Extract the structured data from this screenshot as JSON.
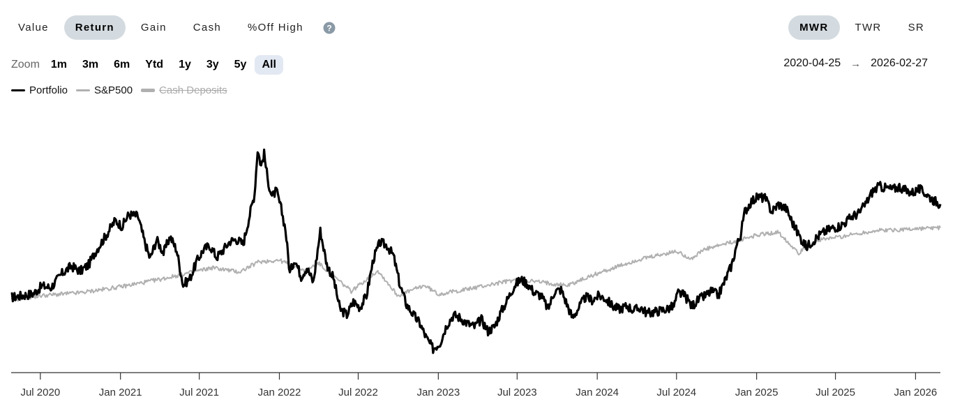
{
  "metric_tabs": [
    "Value",
    "Return",
    "Gain",
    "Cash",
    "%Off High"
  ],
  "active_metric": "Return",
  "return_tabs": [
    "MWR",
    "TWR",
    "SR"
  ],
  "active_return": "MWR",
  "zoom": {
    "label": "Zoom",
    "options": [
      "1m",
      "3m",
      "6m",
      "Ytd",
      "1y",
      "3y",
      "5y",
      "All"
    ],
    "active": "All"
  },
  "date_range": {
    "start": "2020-04-25",
    "end": "2026-02-27"
  },
  "legend": [
    {
      "name": "Portfolio",
      "color": "#000000",
      "enabled": true
    },
    {
      "name": "S&P500",
      "color": "#b0b0b0",
      "enabled": true
    },
    {
      "name": "Cash Deposits",
      "color": "#b0b0b0",
      "enabled": false
    }
  ],
  "chart_data": {
    "type": "line",
    "x_start": "2020-04-25",
    "x_end": "2026-02-27",
    "tick_labels": [
      "Jul 2020",
      "Jan 2021",
      "Jul 2021",
      "Jan 2022",
      "Jul 2022",
      "Jan 2023",
      "Jul 2023",
      "Jan 2024",
      "Jul 2024",
      "Jan 2025",
      "Jul 2025",
      "Jan 2026"
    ],
    "y_axis_labels_shown": false,
    "grid": false,
    "series": [
      {
        "name": "Portfolio",
        "color": "#000000",
        "points": [
          [
            "2020-04-25",
            0.9
          ],
          [
            "2020-05-20",
            1.5
          ],
          [
            "2020-06-15",
            2.2
          ],
          [
            "2020-07-05",
            4.8
          ],
          [
            "2020-07-25",
            4.2
          ],
          [
            "2020-08-20",
            9.0
          ],
          [
            "2020-09-10",
            11.5
          ],
          [
            "2020-10-01",
            9.8
          ],
          [
            "2020-10-20",
            12.0
          ],
          [
            "2020-11-05",
            16.5
          ],
          [
            "2020-11-25",
            21.0
          ],
          [
            "2020-12-20",
            27.0
          ],
          [
            "2021-01-05",
            25.0
          ],
          [
            "2021-01-20",
            29.0
          ],
          [
            "2021-02-10",
            28.5
          ],
          [
            "2021-02-25",
            20.0
          ],
          [
            "2021-03-10",
            14.0
          ],
          [
            "2021-03-25",
            20.5
          ],
          [
            "2021-04-10",
            16.0
          ],
          [
            "2021-04-25",
            21.5
          ],
          [
            "2021-05-10",
            17.0
          ],
          [
            "2021-05-25",
            5.0
          ],
          [
            "2021-06-10",
            7.5
          ],
          [
            "2021-06-25",
            13.0
          ],
          [
            "2021-07-10",
            17.0
          ],
          [
            "2021-07-25",
            18.5
          ],
          [
            "2021-08-10",
            14.5
          ],
          [
            "2021-08-25",
            17.0
          ],
          [
            "2021-09-10",
            20.0
          ],
          [
            "2021-09-25",
            20.5
          ],
          [
            "2021-10-10",
            19.0
          ],
          [
            "2021-10-25",
            29.0
          ],
          [
            "2021-11-05",
            36.0
          ],
          [
            "2021-11-12",
            51.0
          ],
          [
            "2021-11-20",
            45.5
          ],
          [
            "2021-11-27",
            49.5
          ],
          [
            "2021-12-05",
            41.0
          ],
          [
            "2021-12-15",
            35.0
          ],
          [
            "2021-12-25",
            37.0
          ],
          [
            "2022-01-05",
            31.0
          ],
          [
            "2022-01-15",
            24.0
          ],
          [
            "2022-01-25",
            9.0
          ],
          [
            "2022-02-05",
            14.0
          ],
          [
            "2022-02-20",
            8.0
          ],
          [
            "2022-03-05",
            11.0
          ],
          [
            "2022-03-20",
            6.0
          ],
          [
            "2022-04-05",
            23.5
          ],
          [
            "2022-04-20",
            12.0
          ],
          [
            "2022-05-05",
            7.5
          ],
          [
            "2022-05-20",
            -3.0
          ],
          [
            "2022-06-05",
            -5.0
          ],
          [
            "2022-06-20",
            -0.5
          ],
          [
            "2022-07-05",
            -2.5
          ],
          [
            "2022-07-20",
            1.5
          ],
          [
            "2022-08-05",
            14.0
          ],
          [
            "2022-08-20",
            19.5
          ],
          [
            "2022-09-05",
            18.5
          ],
          [
            "2022-09-20",
            15.0
          ],
          [
            "2022-10-05",
            5.0
          ],
          [
            "2022-10-20",
            -1.5
          ],
          [
            "2022-11-05",
            -5.0
          ],
          [
            "2022-11-20",
            -8.0
          ],
          [
            "2022-12-05",
            -13.0
          ],
          [
            "2022-12-20",
            -16.5
          ],
          [
            "2023-01-05",
            -14.5
          ],
          [
            "2023-01-20",
            -8.5
          ],
          [
            "2023-02-05",
            -5.0
          ],
          [
            "2023-02-20",
            -6.0
          ],
          [
            "2023-03-10",
            -8.0
          ],
          [
            "2023-03-25",
            -9.0
          ],
          [
            "2023-04-10",
            -6.5
          ],
          [
            "2023-04-25",
            -10.5
          ],
          [
            "2023-05-10",
            -9.0
          ],
          [
            "2023-05-25",
            -4.0
          ],
          [
            "2023-06-10",
            0.5
          ],
          [
            "2023-06-25",
            5.0
          ],
          [
            "2023-07-10",
            7.0
          ],
          [
            "2023-07-25",
            5.5
          ],
          [
            "2023-08-10",
            2.5
          ],
          [
            "2023-08-25",
            1.5
          ],
          [
            "2023-09-10",
            -3.0
          ],
          [
            "2023-09-25",
            3.0
          ],
          [
            "2023-10-10",
            3.5
          ],
          [
            "2023-10-25",
            -2.0
          ],
          [
            "2023-11-05",
            -6.0
          ],
          [
            "2023-11-20",
            -2.5
          ],
          [
            "2023-12-05",
            1.0
          ],
          [
            "2023-12-20",
            0.0
          ],
          [
            "2024-01-05",
            1.5
          ],
          [
            "2024-01-20",
            0.5
          ],
          [
            "2024-02-05",
            -2.0
          ],
          [
            "2024-02-20",
            -3.0
          ],
          [
            "2024-03-10",
            -2.0
          ],
          [
            "2024-03-25",
            -3.5
          ],
          [
            "2024-04-10",
            -2.5
          ],
          [
            "2024-04-25",
            -4.5
          ],
          [
            "2024-05-10",
            -4.0
          ],
          [
            "2024-05-25",
            -3.5
          ],
          [
            "2024-06-10",
            -3.0
          ],
          [
            "2024-06-25",
            -2.0
          ],
          [
            "2024-07-05",
            2.5
          ],
          [
            "2024-07-20",
            1.5
          ],
          [
            "2024-08-05",
            -2.0
          ],
          [
            "2024-08-20",
            0.0
          ],
          [
            "2024-09-05",
            1.5
          ],
          [
            "2024-09-20",
            3.0
          ],
          [
            "2024-10-05",
            1.5
          ],
          [
            "2024-10-20",
            6.5
          ],
          [
            "2024-11-05",
            12.0
          ],
          [
            "2024-11-15",
            18.0
          ],
          [
            "2024-11-25",
            22.0
          ],
          [
            "2024-12-05",
            30.0
          ],
          [
            "2024-12-20",
            33.5
          ],
          [
            "2025-01-05",
            35.0
          ],
          [
            "2025-01-20",
            34.5
          ],
          [
            "2025-02-05",
            30.0
          ],
          [
            "2025-02-20",
            32.5
          ],
          [
            "2025-03-10",
            31.0
          ],
          [
            "2025-03-25",
            26.0
          ],
          [
            "2025-04-10",
            21.5
          ],
          [
            "2025-04-25",
            18.0
          ],
          [
            "2025-05-10",
            20.0
          ],
          [
            "2025-05-25",
            22.0
          ],
          [
            "2025-06-10",
            23.5
          ],
          [
            "2025-06-25",
            24.5
          ],
          [
            "2025-07-10",
            25.0
          ],
          [
            "2025-07-25",
            26.5
          ],
          [
            "2025-08-10",
            28.5
          ],
          [
            "2025-08-25",
            29.5
          ],
          [
            "2025-09-10",
            33.0
          ],
          [
            "2025-09-25",
            37.0
          ],
          [
            "2025-10-10",
            38.5
          ],
          [
            "2025-10-25",
            38.0
          ],
          [
            "2025-11-10",
            37.5
          ],
          [
            "2025-11-25",
            38.5
          ],
          [
            "2025-12-10",
            37.0
          ],
          [
            "2025-12-25",
            36.5
          ],
          [
            "2026-01-10",
            37.5
          ],
          [
            "2026-01-25",
            36.0
          ],
          [
            "2026-02-10",
            34.0
          ],
          [
            "2026-02-27",
            32.5
          ]
        ]
      },
      {
        "name": "S&P500",
        "color": "#b0b0b0",
        "points": [
          [
            "2020-04-25",
            0.0
          ],
          [
            "2020-07-01",
            1.5
          ],
          [
            "2020-10-01",
            2.5
          ],
          [
            "2021-01-01",
            4.5
          ],
          [
            "2021-04-01",
            7.0
          ],
          [
            "2021-06-01",
            9.0
          ],
          [
            "2021-08-01",
            11.0
          ],
          [
            "2021-10-01",
            9.5
          ],
          [
            "2021-11-15",
            13.0
          ],
          [
            "2022-01-01",
            13.5
          ],
          [
            "2022-03-01",
            10.0
          ],
          [
            "2022-04-01",
            12.5
          ],
          [
            "2022-06-15",
            3.0
          ],
          [
            "2022-08-15",
            10.0
          ],
          [
            "2022-09-30",
            1.5
          ],
          [
            "2022-11-30",
            5.0
          ],
          [
            "2023-01-01",
            2.0
          ],
          [
            "2023-03-01",
            3.5
          ],
          [
            "2023-07-01",
            7.0
          ],
          [
            "2023-10-25",
            5.0
          ],
          [
            "2024-01-01",
            9.0
          ],
          [
            "2024-04-01",
            13.5
          ],
          [
            "2024-07-01",
            16.5
          ],
          [
            "2024-08-05",
            14.0
          ],
          [
            "2024-09-01",
            17.0
          ],
          [
            "2024-11-15",
            20.0
          ],
          [
            "2025-01-01",
            22.0
          ],
          [
            "2025-02-20",
            23.0
          ],
          [
            "2025-04-08",
            16.0
          ],
          [
            "2025-05-15",
            20.0
          ],
          [
            "2025-08-01",
            22.0
          ],
          [
            "2025-10-01",
            23.5
          ],
          [
            "2026-02-27",
            24.5
          ]
        ]
      }
    ]
  }
}
